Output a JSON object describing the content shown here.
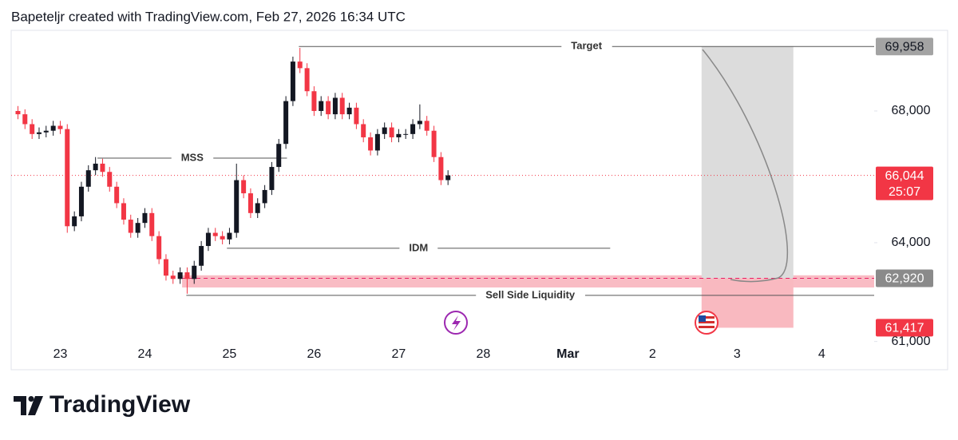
{
  "header": "Bapeteljr created with TradingView.com, Feb 27, 2026 16:34 UTC",
  "brand": "TradingView",
  "chart_data": {
    "type": "candlestick",
    "x": [
      22.5,
      22.583,
      22.667,
      22.75,
      22.833,
      22.917,
      23,
      23.083,
      23.167,
      23.25,
      23.333,
      23.417,
      23.5,
      23.583,
      23.667,
      23.75,
      23.833,
      23.917,
      24,
      24.083,
      24.167,
      24.25,
      24.333,
      24.417,
      24.5,
      24.583,
      24.667,
      24.75,
      24.833,
      24.917,
      25,
      25.083,
      25.167,
      25.25,
      25.333,
      25.417,
      25.5,
      25.583,
      25.667,
      25.75,
      25.833,
      25.917,
      26,
      26.083,
      26.167,
      26.25,
      26.333,
      26.417,
      26.5,
      26.583,
      26.667,
      26.75,
      26.833,
      26.917,
      27,
      27.083,
      27.167,
      27.25,
      27.333,
      27.417,
      27.5,
      27.583
    ],
    "open": [
      68000,
      67900,
      67600,
      67300,
      67350,
      67400,
      67550,
      67450,
      64500,
      64800,
      65700,
      66200,
      66400,
      66150,
      65700,
      65200,
      64700,
      64300,
      64600,
      64900,
      64200,
      63500,
      63000,
      62900,
      63100,
      62900,
      63300,
      63900,
      64300,
      64200,
      64100,
      64300,
      65900,
      65500,
      64900,
      65200,
      65600,
      66300,
      67000,
      68300,
      69500,
      69300,
      68600,
      68000,
      68300,
      67900,
      68400,
      67900,
      68100,
      67600,
      67200,
      66800,
      67300,
      67500,
      67200,
      67300,
      67300,
      67600,
      67700,
      67400,
      66600,
      65900
    ],
    "high": [
      68150,
      68050,
      67750,
      67500,
      67550,
      67700,
      67700,
      67600,
      64950,
      65850,
      66350,
      66600,
      66550,
      66300,
      65850,
      65350,
      64850,
      64750,
      65050,
      65050,
      64350,
      63650,
      63150,
      63250,
      63250,
      63450,
      64050,
      64450,
      64450,
      64350,
      64450,
      66400,
      66050,
      65650,
      65350,
      65750,
      66450,
      67150,
      68450,
      69650,
      69915,
      69450,
      68750,
      68450,
      68450,
      68550,
      68550,
      68250,
      68250,
      67750,
      67350,
      67450,
      67650,
      67650,
      67450,
      67450,
      67750,
      68200,
      67850,
      67550,
      66750,
      66200
    ],
    "low": [
      67750,
      67450,
      67150,
      67150,
      67200,
      67250,
      67300,
      64300,
      64350,
      64650,
      65550,
      66050,
      66000,
      65550,
      65050,
      64550,
      64150,
      64150,
      64450,
      64050,
      63350,
      62850,
      62750,
      62750,
      62450,
      62750,
      63150,
      63750,
      64050,
      63950,
      63950,
      64150,
      65350,
      64750,
      64750,
      65050,
      65450,
      66150,
      66850,
      68150,
      69150,
      68450,
      67850,
      67850,
      67750,
      67750,
      67750,
      67750,
      67450,
      67050,
      66650,
      66650,
      67150,
      67050,
      67050,
      67150,
      67150,
      67450,
      67250,
      66450,
      65750,
      65750
    ],
    "close": [
      67900,
      67600,
      67300,
      67350,
      67400,
      67550,
      67450,
      64500,
      64800,
      65700,
      66200,
      66400,
      66150,
      65700,
      65200,
      64700,
      64300,
      64600,
      64900,
      64200,
      63500,
      63000,
      62900,
      63100,
      62900,
      63300,
      63900,
      64300,
      64200,
      64100,
      64300,
      65900,
      65500,
      64900,
      65200,
      65600,
      66300,
      67000,
      68300,
      69500,
      69300,
      68600,
      68000,
      68300,
      67900,
      68400,
      67900,
      68100,
      67600,
      67200,
      66800,
      67300,
      67500,
      67200,
      67300,
      67300,
      67600,
      67700,
      67400,
      66600,
      65900,
      66044
    ],
    "up_color": "#131722",
    "down_color": "#f23645",
    "xlim": [
      22.42,
      32.62
    ],
    "xticks": [
      23,
      24,
      25,
      26,
      27,
      28,
      {
        "value": 29,
        "label": "Mar"
      },
      {
        "value": 30,
        "label": "2"
      },
      {
        "value": 31,
        "label": "3"
      },
      {
        "value": 32,
        "label": "4"
      }
    ],
    "ylim": [
      60700,
      70400
    ],
    "yticks": [
      {
        "value": 61000,
        "label": "61,000"
      },
      {
        "value": 64000,
        "label": "64,000"
      },
      {
        "value": 68000,
        "label": "68,000"
      }
    ],
    "grid": false,
    "levels": [
      {
        "label": "Target",
        "value": 69958,
        "start": 25.82,
        "end": 32.62
      },
      {
        "label": "MSS",
        "value": 66570,
        "start": 23.44,
        "end": 25.68
      },
      {
        "label": "IDM",
        "value": 63830,
        "start": 24.97,
        "end": 29.5
      },
      {
        "label": "Sell Side Liquidity",
        "value": 62400,
        "start": 24.49,
        "end": 32.62
      }
    ],
    "zone": {
      "low": 62640,
      "high": 63010,
      "start": 24.44,
      "end": 32.62,
      "color": "#f7a6b0"
    },
    "position": {
      "start": 30.58,
      "end": 31.665,
      "target": 69958,
      "entry": 62920,
      "stop": 61417
    },
    "last_price": {
      "value": 66044,
      "label": "66,044",
      "countdown": "25:07",
      "color": "#f23645"
    },
    "price_labels": [
      {
        "value": 69958,
        "label": "69,958",
        "color": "#a3a3a3",
        "text_color": "#131722"
      },
      {
        "value": 62920,
        "label": "62,920",
        "color": "#8a8a8a",
        "text_color": "#ffffff"
      },
      {
        "value": 61417,
        "label": "61,417",
        "color": "#f23645",
        "text_color": "#ffffff"
      }
    ]
  }
}
